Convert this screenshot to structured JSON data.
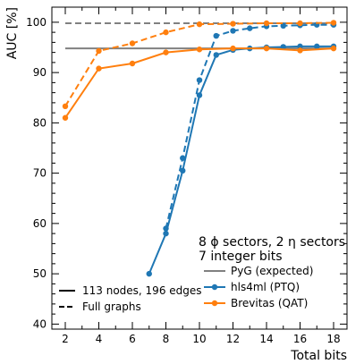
{
  "chart_data": {
    "type": "line",
    "xlabel": "Total bits",
    "ylabel": "AUC [%]",
    "xlim": [
      1.2,
      18.8
    ],
    "ylim": [
      39,
      103
    ],
    "x_ticks": [
      2,
      4,
      6,
      8,
      10,
      12,
      14,
      16,
      18
    ],
    "y_ticks": [
      40,
      50,
      60,
      70,
      80,
      90,
      100
    ],
    "grid": false,
    "annotation_lines": [
      "8 ϕ sectors, 2 η sectors",
      "7 integer bits"
    ],
    "series": [
      {
        "name": "PyG (expected)",
        "color": "#808080",
        "style": "solid",
        "marker": "none",
        "x": [
          2,
          18
        ],
        "y": [
          94.8,
          94.8
        ]
      },
      {
        "name": "PyG (expected)",
        "color": "#808080",
        "style": "dashed",
        "marker": "none",
        "x": [
          2,
          18
        ],
        "y": [
          99.8,
          99.8
        ]
      },
      {
        "name": "hls4ml (PTQ)",
        "color": "#1f77b4",
        "style": "solid",
        "marker": "circle",
        "x": [
          7,
          8,
          9,
          10,
          11,
          12,
          13,
          14,
          15,
          16,
          17,
          18
        ],
        "y": [
          50.0,
          58.0,
          70.5,
          85.5,
          93.5,
          94.5,
          94.8,
          95.0,
          95.1,
          95.2,
          95.2,
          95.2
        ]
      },
      {
        "name": "hls4ml (PTQ)",
        "color": "#1f77b4",
        "style": "dashed",
        "marker": "circle",
        "x": [
          8,
          9,
          10,
          11,
          12,
          13,
          14,
          15,
          16,
          17,
          18
        ],
        "y": [
          59.0,
          73.0,
          88.5,
          97.3,
          98.3,
          98.8,
          99.2,
          99.3,
          99.4,
          99.5,
          99.5
        ]
      },
      {
        "name": "Brevitas (QAT)",
        "color": "#ff7f0e",
        "style": "solid",
        "marker": "circle",
        "x": [
          2,
          4,
          6,
          8,
          10,
          12,
          14,
          16,
          18
        ],
        "y": [
          81.0,
          90.8,
          91.8,
          94.0,
          94.6,
          94.8,
          94.8,
          94.4,
          94.8
        ]
      },
      {
        "name": "Brevitas (QAT)",
        "color": "#ff7f0e",
        "style": "dashed",
        "marker": "circle",
        "x": [
          2,
          4,
          6,
          8,
          10,
          12,
          14,
          16,
          18
        ],
        "y": [
          83.3,
          94.3,
          95.8,
          98.0,
          99.6,
          99.7,
          99.8,
          99.8,
          99.9
        ]
      }
    ],
    "legend": {
      "placement": "lower-right",
      "color_entries": [
        {
          "label": "PyG (expected)",
          "color": "#808080",
          "marker": "none"
        },
        {
          "label": "hls4ml (PTQ)",
          "color": "#1f77b4",
          "marker": "circle"
        },
        {
          "label": "Brevitas (QAT)",
          "color": "#ff7f0e",
          "marker": "circle"
        }
      ],
      "style_entries": [
        {
          "label": "113 nodes, 196 edges",
          "style": "solid"
        },
        {
          "label": "Full graphs",
          "style": "dashed"
        }
      ]
    }
  }
}
